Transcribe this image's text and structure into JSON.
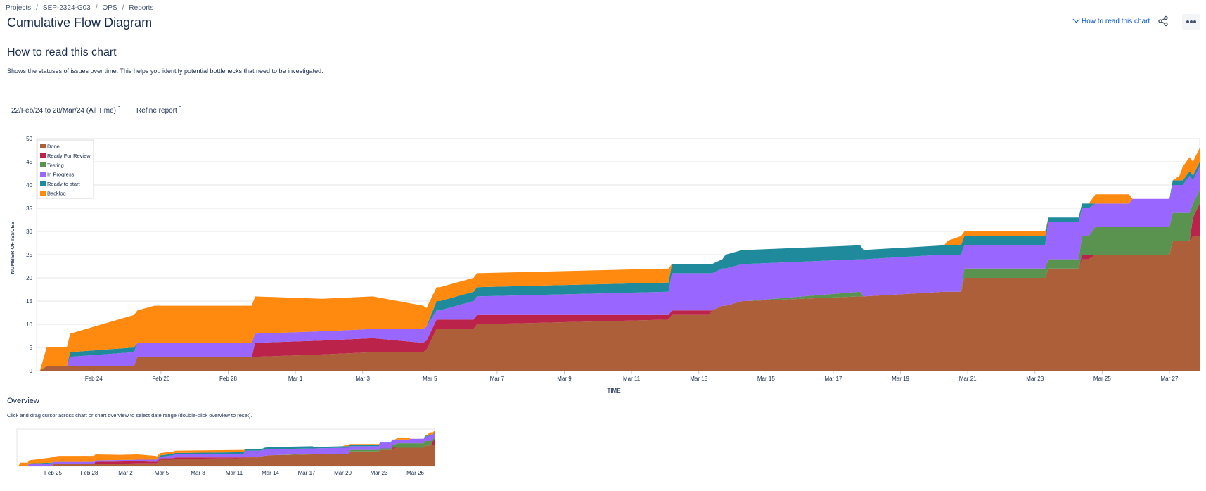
{
  "breadcrumb": [
    "Projects",
    "SEP-2324-G03",
    "OPS",
    "Reports"
  ],
  "page": {
    "title": "Cumulative Flow Diagram",
    "how_to_link": "How to read this chart"
  },
  "help": {
    "title": "How to read this chart",
    "description": "Shows the statuses of issues over time. This helps you identify potential bottlenecks that need to be investigated."
  },
  "filters": {
    "date_range": "22/Feb/24 to 28/Mar/24 (All Time)",
    "refine": "Refine report"
  },
  "overview": {
    "title": "Overview",
    "description": "Click and drag cursor across chart or chart overview to select date range (double-click overview to reset).",
    "tick_labels": [
      "Feb 25",
      "Feb 28",
      "Mar 2",
      "Mar 5",
      "Mar 8",
      "Mar 11",
      "Mar 14",
      "Mar 17",
      "Mar 20",
      "Mar 23",
      "Mar 26"
    ],
    "tick_days": [
      3,
      6,
      9,
      12,
      15,
      18,
      21,
      24,
      27,
      30,
      33
    ]
  },
  "icons": {
    "share": "share-icon",
    "more": "more-icon",
    "chevron": "chevron-down-icon"
  },
  "chart_data": {
    "type": "area",
    "stacked": true,
    "title": "Cumulative Flow Diagram",
    "xlabel": "TIME",
    "ylabel": "NUMBER OF ISSUES",
    "ylim": [
      0,
      50
    ],
    "yticks": [
      0,
      5,
      10,
      15,
      20,
      25,
      30,
      35,
      40,
      45,
      50
    ],
    "grid": true,
    "legend_position": "top-left",
    "x_start": "2024-02-22",
    "x_end": "2024-03-28",
    "x_tick_labels": [
      "Feb 24",
      "Feb 26",
      "Feb 28",
      "Mar 1",
      "Mar 3",
      "Mar 5",
      "Mar 7",
      "Mar 9",
      "Mar 11",
      "Mar 13",
      "Mar 15",
      "Mar 17",
      "Mar 19",
      "Mar 21",
      "Mar 23",
      "Mar 25",
      "Mar 27"
    ],
    "x_tick_days": [
      1.7,
      3.7,
      5.7,
      7.7,
      9.7,
      11.7,
      13.7,
      15.7,
      17.7,
      19.7,
      21.7,
      23.7,
      25.7,
      27.7,
      29.7,
      31.7,
      33.7
    ],
    "x": [
      0,
      0.1,
      0.3,
      0.9,
      1.0,
      2.9,
      3.0,
      3.5,
      5.5,
      6.0,
      6.4,
      6.5,
      8.5,
      10.0,
      11.5,
      11.6,
      11.9,
      12.0,
      13.0,
      13.1,
      18.8,
      18.9,
      20.0,
      20.1,
      20.4,
      20.5,
      21.0,
      21.1,
      24.5,
      24.6,
      27.0,
      27.1,
      27.5,
      27.6,
      30.0,
      30.1,
      31.0,
      31.1,
      31.3,
      31.5,
      32.5,
      32.6,
      33.7,
      33.8,
      34.0,
      34.1,
      34.3,
      34.4,
      34.6
    ],
    "series": [
      {
        "name": "Done",
        "color": "#ad5f3a",
        "values": [
          0,
          0,
          1,
          1,
          1,
          1,
          3,
          3,
          3,
          3,
          3,
          3,
          3.5,
          4,
          4,
          4.5,
          9,
          9,
          9,
          10,
          11,
          12,
          12,
          13,
          14,
          14,
          15,
          15,
          16,
          16,
          17,
          17,
          17,
          20,
          20,
          22,
          22,
          24,
          24,
          25,
          25,
          25,
          25,
          28,
          28,
          28,
          28,
          29,
          29
        ]
      },
      {
        "name": "Ready For Review",
        "color": "#bc234b",
        "values": [
          0,
          0,
          0,
          0,
          0,
          0,
          0,
          0,
          0,
          0,
          0,
          3,
          3,
          3,
          2,
          2,
          2,
          2,
          2,
          2,
          1,
          1,
          1,
          0,
          0,
          0,
          0,
          0,
          0,
          0,
          0,
          0,
          0,
          0,
          0,
          0,
          0,
          1,
          1,
          0,
          0,
          0,
          0,
          0,
          0,
          0,
          0,
          4,
          7
        ]
      },
      {
        "name": "Testing",
        "color": "#5a9250",
        "values": [
          0,
          0,
          0,
          0,
          0,
          0,
          0,
          0,
          0,
          0,
          0,
          0,
          0,
          0,
          0,
          0,
          0,
          0,
          0,
          0,
          0,
          0,
          0,
          0,
          0,
          0,
          0,
          0,
          1,
          0,
          0,
          0,
          0,
          2,
          2,
          2,
          2,
          4,
          4,
          6,
          6,
          6,
          6,
          6,
          6,
          6,
          6,
          3,
          3
        ]
      },
      {
        "name": "In Progress",
        "color": "#9966ff",
        "values": [
          0,
          0,
          0,
          0,
          2,
          3,
          3,
          3,
          3,
          3,
          3,
          2,
          2,
          2,
          3,
          3,
          2,
          2,
          4,
          4,
          5,
          8,
          8,
          8,
          8,
          8,
          8,
          8,
          7,
          8,
          8,
          8,
          8,
          5,
          5,
          8,
          8,
          6,
          6,
          5,
          5,
          6,
          6,
          6,
          6,
          6,
          8,
          5,
          5
        ]
      },
      {
        "name": "Ready to start",
        "color": "#1f8a9c",
        "values": [
          0,
          0,
          0,
          0,
          1,
          1,
          0,
          0,
          0,
          0,
          0,
          0,
          0,
          0,
          0,
          0,
          2,
          2,
          2,
          2,
          2,
          2,
          2,
          2,
          2,
          3,
          3,
          3,
          3,
          2,
          2,
          2,
          2,
          2,
          2,
          1,
          1,
          1,
          1,
          0,
          0,
          0,
          0,
          1,
          1,
          1,
          1,
          1,
          1
        ]
      },
      {
        "name": "Backlog",
        "color": "#ff8a0f",
        "values": [
          0,
          0,
          4,
          4,
          4,
          7,
          7,
          8,
          8,
          8,
          8,
          8,
          7,
          7,
          5,
          4,
          3,
          3,
          3,
          3,
          3,
          0,
          0,
          0,
          0,
          0,
          0,
          0,
          0,
          0,
          0,
          1,
          2,
          1,
          1,
          0,
          0,
          0,
          0,
          2,
          2,
          0,
          0,
          0,
          1,
          3,
          3,
          3,
          3
        ]
      }
    ]
  }
}
